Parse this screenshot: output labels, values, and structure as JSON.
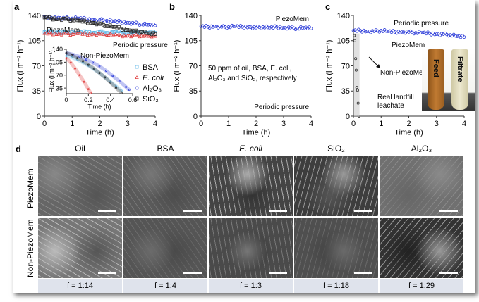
{
  "panels": {
    "a": "a",
    "b": "b",
    "c": "c",
    "d": "d"
  },
  "chart_data": [
    {
      "id": "a",
      "type": "scatter",
      "xlabel": "Time (h)",
      "ylabel": "Flux (l m⁻² h⁻¹)",
      "xlim": [
        0,
        4
      ],
      "ylim": [
        0,
        140
      ],
      "xticks": [
        "0",
        "1",
        "2",
        "3",
        "4"
      ],
      "yticks": [
        "0",
        "35",
        "70",
        "105",
        "140"
      ],
      "annotations": [
        "PiezoMem",
        "Periodic pressure"
      ],
      "legend": [
        "BSA",
        "E. coli",
        "Al₂O₃",
        "SiO₂"
      ],
      "series": [
        {
          "name": "BSA",
          "color": "#5ab4e6",
          "marker": "square",
          "x": [
            0,
            0.25,
            0.5,
            0.75,
            1,
            1.25,
            1.5,
            1.75,
            2,
            2.25,
            2.5,
            2.75,
            3,
            3.25,
            3.5,
            3.75,
            4
          ],
          "y": [
            117,
            117,
            117,
            116,
            117,
            116,
            117,
            116,
            117,
            116,
            117,
            116,
            116,
            116,
            117,
            116,
            116
          ]
        },
        {
          "name": "E. coli",
          "color": "#e03a3a",
          "marker": "triangle",
          "x": [
            0,
            0.25,
            0.5,
            0.75,
            1,
            1.25,
            1.5,
            1.75,
            2,
            2.25,
            2.5,
            2.75,
            3,
            3.25,
            3.5,
            3.75,
            4
          ],
          "y": [
            115,
            115,
            114,
            115,
            114,
            115,
            114,
            114,
            114,
            113,
            113,
            112,
            112,
            112,
            112,
            111,
            111
          ]
        },
        {
          "name": "Al₂O₃",
          "color": "#2a3ad8",
          "marker": "circle",
          "x": [
            0,
            0.25,
            0.5,
            0.75,
            1,
            1.25,
            1.5,
            1.75,
            2,
            2.25,
            2.5,
            2.75,
            3,
            3.25,
            3.5,
            3.75,
            4
          ],
          "y": [
            138,
            137,
            137,
            136,
            136,
            136,
            135,
            134,
            134,
            133,
            132,
            131,
            130,
            129,
            128,
            127,
            126
          ]
        },
        {
          "name": "SiO₂",
          "color": "#222222",
          "marker": "square",
          "x": [
            0,
            0.25,
            0.5,
            0.75,
            1,
            1.25,
            1.5,
            1.75,
            2,
            2.25,
            2.5,
            2.75,
            3,
            3.25,
            3.5,
            3.75,
            4
          ],
          "y": [
            137,
            136,
            135,
            135,
            134,
            133,
            131,
            130,
            128,
            126,
            124,
            122,
            120,
            118,
            117,
            115,
            114
          ]
        }
      ],
      "inset": {
        "title": "Non-PiezoMem",
        "xlabel": "Time (h)",
        "ylabel": "Flux (l m⁻² h⁻¹)",
        "xlim": [
          0,
          0.6
        ],
        "ylim": [
          20,
          140
        ],
        "xticks": [
          "0",
          "0.2",
          "0.4",
          "0.6"
        ],
        "yticks": [
          "35",
          "70",
          "105",
          "140"
        ],
        "series": [
          {
            "name": "BSA",
            "color": "#5ab4e6",
            "x": [
              0,
              0.05,
              0.1,
              0.15,
              0.2,
              0.25,
              0.3,
              0.35,
              0.4,
              0.45,
              0.5
            ],
            "y": [
              122,
              118,
              112,
              104,
              96,
              86,
              76,
              64,
              52,
              40,
              28
            ]
          },
          {
            "name": "E. coli",
            "color": "#e03a3a",
            "x": [
              0,
              0.04,
              0.08,
              0.12,
              0.16,
              0.2,
              0.22
            ],
            "y": [
              116,
              104,
              88,
              70,
              52,
              32,
              22
            ]
          },
          {
            "name": "Al₂O₃",
            "color": "#2a3ad8",
            "x": [
              0,
              0.06,
              0.12,
              0.18,
              0.24,
              0.3,
              0.36,
              0.42,
              0.48,
              0.54,
              0.57
            ],
            "y": [
              130,
              126,
              120,
              112,
              104,
              94,
              82,
              68,
              54,
              38,
              30
            ]
          },
          {
            "name": "SiO₂",
            "color": "#222222",
            "x": [
              0,
              0.05,
              0.1,
              0.15,
              0.2,
              0.25,
              0.3,
              0.35,
              0.4,
              0.45,
              0.5
            ],
            "y": [
              130,
              124,
              116,
              108,
              98,
              88,
              76,
              64,
              50,
              36,
              22
            ]
          }
        ]
      }
    },
    {
      "id": "b",
      "type": "scatter",
      "xlabel": "Time (h)",
      "ylabel": "Flux (l m⁻² h⁻¹)",
      "xlim": [
        0,
        4
      ],
      "ylim": [
        0,
        140
      ],
      "xticks": [
        "0",
        "1",
        "2",
        "3",
        "4"
      ],
      "yticks": [
        "0",
        "35",
        "70",
        "105",
        "140"
      ],
      "annotations": [
        "PiezoMem",
        "50 ppm of oil, BSA, E. coli,",
        "Al₂O₃ and SiO₂, respectively",
        "Periodic pressure"
      ],
      "series": [
        {
          "name": "PiezoMem",
          "color": "#2a3ad8",
          "x": [
            0,
            0.25,
            0.5,
            0.75,
            1,
            1.25,
            1.5,
            1.75,
            2,
            2.25,
            2.5,
            2.75,
            3,
            3.25,
            3.5,
            3.75,
            4
          ],
          "y": [
            125,
            124,
            125,
            124,
            124,
            125,
            124,
            124,
            123,
            124,
            123,
            124,
            123,
            123,
            122,
            123,
            122
          ]
        }
      ]
    },
    {
      "id": "c",
      "type": "scatter",
      "xlabel": "Time (h)",
      "ylabel": "Flux (l m⁻² h⁻¹)",
      "xlim": [
        0,
        4
      ],
      "ylim": [
        0,
        140
      ],
      "xticks": [
        "0",
        "1",
        "2",
        "3",
        "4"
      ],
      "yticks": [
        "0",
        "35",
        "70",
        "105",
        "140"
      ],
      "annotations": [
        "Periodic pressure",
        "PiezoMem",
        "Non-PiezoMem",
        "Real landfill",
        "leachate"
      ],
      "photo_labels": [
        "Feed",
        "Filtrate"
      ],
      "series": [
        {
          "name": "PiezoMem",
          "color": "#2a3ad8",
          "x": [
            0,
            0.25,
            0.5,
            0.75,
            1,
            1.25,
            1.5,
            1.75,
            2,
            2.25,
            2.5,
            2.75,
            3,
            3.25,
            3.5,
            3.75,
            4
          ],
          "y": [
            119,
            119,
            118,
            118,
            119,
            118,
            117,
            117,
            117,
            116,
            116,
            115,
            114,
            114,
            113,
            111,
            110
          ]
        },
        {
          "name": "Non-PiezoMem",
          "color": "#333333",
          "x": [
            0.03,
            0.05,
            0.08,
            0.1,
            0.12,
            0.15,
            0.17,
            0.2
          ],
          "y": [
            112,
            105,
            80,
            64,
            40,
            36,
            18,
            0
          ]
        }
      ]
    }
  ],
  "sem": {
    "columns": [
      "Oil",
      "BSA",
      "E. coli",
      "SiO₂",
      "Al₂O₃"
    ],
    "rows": [
      "PiezoMem",
      "Non-PiezoMem"
    ],
    "ratios": [
      "f = 1:14",
      "f = 1:4",
      "f = 1:3",
      "f = 1:18",
      "f = 1:29"
    ]
  }
}
